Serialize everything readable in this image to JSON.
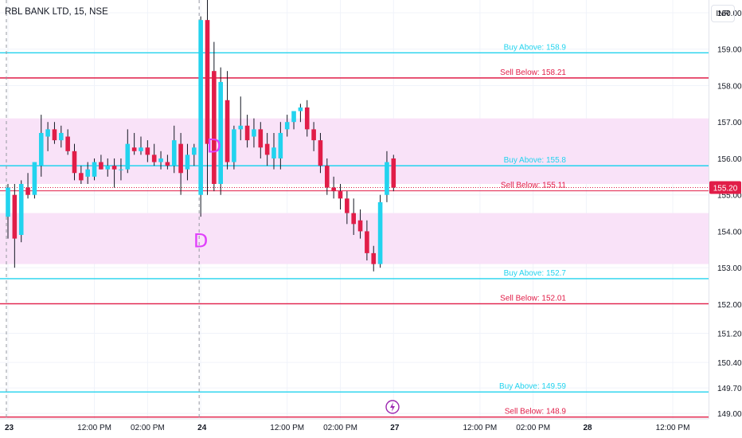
{
  "title": "RBL BANK LTD, 15, NSE",
  "currency": "INR",
  "price_tag": "155.20",
  "event_icon": "lightning-icon",
  "colors": {
    "up": "#22d3ee",
    "down": "#e11d48",
    "buy_line": "#22d3ee",
    "sell_line": "#e11d48",
    "zone_fill": "#f9e2f8",
    "marker": "#e040fb",
    "grid": "#f0f3fa",
    "axis_text": "#131722",
    "price_tag_bg": "#e11d48"
  },
  "chart_data": {
    "type": "candlestick",
    "title": "RBL BANK LTD, 15, NSE",
    "y_axis": {
      "ylim": [
        148.85,
        160.35
      ],
      "ticks": [
        "160.00",
        "159.00",
        "158.00",
        "157.00",
        "156.00",
        "155.00",
        "154.00",
        "153.00",
        "152.00",
        "151.20",
        "150.40",
        "149.70",
        "149.00"
      ]
    },
    "x_axis": {
      "ticks": [
        {
          "label": "23",
          "bar": 0
        },
        {
          "label": "12:00 PM",
          "bar": 13
        },
        {
          "label": "02:00 PM",
          "bar": 21
        },
        {
          "label": "24",
          "bar": 29
        },
        {
          "label": "12:00 PM",
          "bar": 42
        },
        {
          "label": "02:00 PM",
          "bar": 50
        },
        {
          "label": "27",
          "bar": 58
        },
        {
          "label": "12:00 PM",
          "bar": 71
        },
        {
          "label": "02:00 PM",
          "bar": 79
        },
        {
          "label": "28",
          "bar": 87
        },
        {
          "label": "12:00 PM",
          "bar": 100
        }
      ]
    },
    "session_breaks": [
      0,
      29
    ],
    "horizontal_levels": [
      {
        "label": "Buy Above: 158.9",
        "value": 158.9,
        "kind": "buy"
      },
      {
        "label": "Sell Below: 158.21",
        "value": 158.21,
        "kind": "sell"
      },
      {
        "label": "Buy Above: 155.8",
        "value": 155.8,
        "kind": "buy"
      },
      {
        "label": "Sell Below: 155.11",
        "value": 155.11,
        "kind": "sell"
      },
      {
        "label": "Buy Above: 152.7",
        "value": 152.7,
        "kind": "buy"
      },
      {
        "label": "Sell Below: 152.01",
        "value": 152.01,
        "kind": "sell"
      },
      {
        "label": "Buy Above: 149.59",
        "value": 149.59,
        "kind": "buy"
      },
      {
        "label": "Sell Below: 148.9",
        "value": 148.9,
        "kind": "sell"
      }
    ],
    "zones": [
      {
        "from": 155.3,
        "to": 157.1
      },
      {
        "from": 153.1,
        "to": 154.5
      }
    ],
    "markers": [
      {
        "text": "D",
        "bar": 29,
        "price": 153.8
      },
      {
        "text": "D",
        "bar": 31,
        "price": 156.4
      }
    ],
    "last_price": 155.2,
    "candles": [
      {
        "o": 154.4,
        "h": 155.3,
        "l": 153.8,
        "c": 155.2
      },
      {
        "o": 155.0,
        "h": 155.3,
        "l": 153.0,
        "c": 153.8
      },
      {
        "o": 153.9,
        "h": 155.4,
        "l": 153.7,
        "c": 155.3
      },
      {
        "o": 155.2,
        "h": 155.6,
        "l": 154.9,
        "c": 155.0
      },
      {
        "o": 155.0,
        "h": 155.9,
        "l": 154.9,
        "c": 155.9
      },
      {
        "o": 155.8,
        "h": 157.2,
        "l": 155.5,
        "c": 156.7
      },
      {
        "o": 156.6,
        "h": 157.0,
        "l": 156.2,
        "c": 156.8
      },
      {
        "o": 156.8,
        "h": 157.0,
        "l": 156.4,
        "c": 156.5
      },
      {
        "o": 156.5,
        "h": 156.9,
        "l": 156.3,
        "c": 156.7
      },
      {
        "o": 156.6,
        "h": 156.8,
        "l": 156.1,
        "c": 156.2
      },
      {
        "o": 156.2,
        "h": 156.4,
        "l": 155.4,
        "c": 155.6
      },
      {
        "o": 155.6,
        "h": 155.8,
        "l": 155.3,
        "c": 155.4
      },
      {
        "o": 155.5,
        "h": 155.9,
        "l": 155.3,
        "c": 155.7
      },
      {
        "o": 155.5,
        "h": 156.0,
        "l": 155.4,
        "c": 155.9
      },
      {
        "o": 155.9,
        "h": 156.1,
        "l": 155.7,
        "c": 155.7
      },
      {
        "o": 155.7,
        "h": 156.0,
        "l": 155.5,
        "c": 155.8
      },
      {
        "o": 155.8,
        "h": 156.0,
        "l": 155.2,
        "c": 155.7
      },
      {
        "o": 155.7,
        "h": 156.0,
        "l": 155.4,
        "c": 155.7
      },
      {
        "o": 155.7,
        "h": 156.8,
        "l": 155.6,
        "c": 156.4
      },
      {
        "o": 156.3,
        "h": 156.7,
        "l": 156.1,
        "c": 156.2
      },
      {
        "o": 156.2,
        "h": 156.6,
        "l": 156.1,
        "c": 156.3
      },
      {
        "o": 156.3,
        "h": 156.5,
        "l": 155.9,
        "c": 156.1
      },
      {
        "o": 156.1,
        "h": 156.4,
        "l": 155.8,
        "c": 155.9
      },
      {
        "o": 155.9,
        "h": 156.2,
        "l": 155.7,
        "c": 156.0
      },
      {
        "o": 155.9,
        "h": 156.1,
        "l": 155.7,
        "c": 155.8
      },
      {
        "o": 155.8,
        "h": 156.9,
        "l": 155.6,
        "c": 156.5
      },
      {
        "o": 156.4,
        "h": 156.7,
        "l": 155.0,
        "c": 155.6
      },
      {
        "o": 155.7,
        "h": 156.4,
        "l": 155.4,
        "c": 156.1
      },
      {
        "o": 156.1,
        "h": 156.4,
        "l": 155.8,
        "c": 156.3
      },
      {
        "o": 155.0,
        "h": 159.9,
        "l": 154.4,
        "c": 159.8
      },
      {
        "o": 159.8,
        "h": 160.5,
        "l": 155.0,
        "c": 156.4
      },
      {
        "o": 158.4,
        "h": 159.2,
        "l": 155.1,
        "c": 155.3
      },
      {
        "o": 155.3,
        "h": 158.5,
        "l": 155.0,
        "c": 158.1
      },
      {
        "o": 157.6,
        "h": 158.4,
        "l": 155.7,
        "c": 155.9
      },
      {
        "o": 155.9,
        "h": 156.9,
        "l": 155.7,
        "c": 156.8
      },
      {
        "o": 156.8,
        "h": 157.7,
        "l": 156.5,
        "c": 156.9
      },
      {
        "o": 156.9,
        "h": 157.2,
        "l": 156.3,
        "c": 156.5
      },
      {
        "o": 156.6,
        "h": 157.1,
        "l": 156.3,
        "c": 156.8
      },
      {
        "o": 156.8,
        "h": 157.0,
        "l": 156.0,
        "c": 156.3
      },
      {
        "o": 156.4,
        "h": 156.7,
        "l": 155.8,
        "c": 156.1
      },
      {
        "o": 156.0,
        "h": 156.7,
        "l": 155.7,
        "c": 156.3
      },
      {
        "o": 156.0,
        "h": 157.0,
        "l": 155.7,
        "c": 156.7
      },
      {
        "o": 156.8,
        "h": 157.2,
        "l": 156.6,
        "c": 157.0
      },
      {
        "o": 157.0,
        "h": 157.3,
        "l": 156.8,
        "c": 157.3
      },
      {
        "o": 157.3,
        "h": 157.5,
        "l": 157.0,
        "c": 157.4
      },
      {
        "o": 157.4,
        "h": 157.6,
        "l": 156.6,
        "c": 156.8
      },
      {
        "o": 156.8,
        "h": 157.0,
        "l": 156.2,
        "c": 156.5
      },
      {
        "o": 156.5,
        "h": 156.7,
        "l": 155.6,
        "c": 155.8
      },
      {
        "o": 155.8,
        "h": 156.0,
        "l": 155.0,
        "c": 155.2
      },
      {
        "o": 155.2,
        "h": 155.5,
        "l": 154.9,
        "c": 155.1
      },
      {
        "o": 155.1,
        "h": 155.3,
        "l": 154.6,
        "c": 154.9
      },
      {
        "o": 154.9,
        "h": 155.1,
        "l": 154.2,
        "c": 154.5
      },
      {
        "o": 154.5,
        "h": 154.9,
        "l": 153.9,
        "c": 154.2
      },
      {
        "o": 154.3,
        "h": 154.6,
        "l": 153.8,
        "c": 154.0
      },
      {
        "o": 154.0,
        "h": 154.3,
        "l": 153.2,
        "c": 153.4
      },
      {
        "o": 153.4,
        "h": 153.6,
        "l": 152.9,
        "c": 153.1
      },
      {
        "o": 153.1,
        "h": 155.0,
        "l": 153.0,
        "c": 154.8
      },
      {
        "o": 155.0,
        "h": 156.2,
        "l": 154.8,
        "c": 155.9
      },
      {
        "o": 156.0,
        "h": 156.1,
        "l": 155.1,
        "c": 155.2
      }
    ]
  }
}
